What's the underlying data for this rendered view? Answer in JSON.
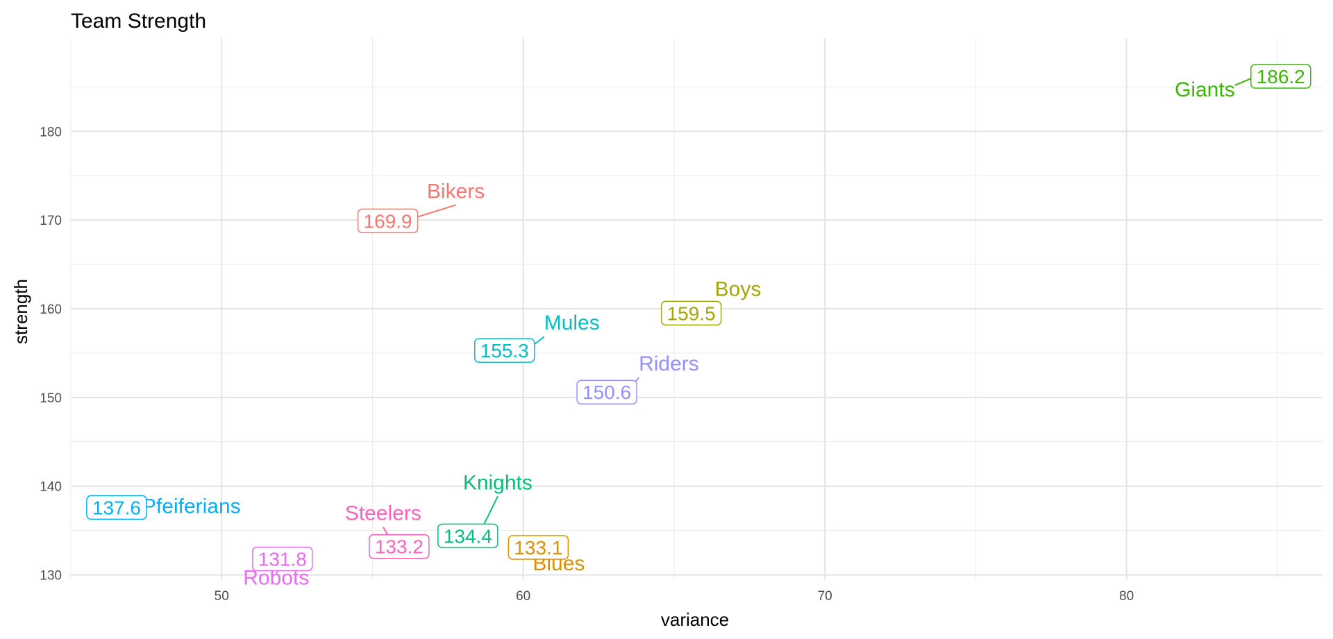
{
  "chart_data": {
    "type": "scatter",
    "title": "Team Strength",
    "xlabel": "variance",
    "ylabel": "strength",
    "xlim": [
      45,
      86.5
    ],
    "ylim": [
      129.5,
      190.5
    ],
    "x_ticks": [
      50,
      60,
      70,
      80
    ],
    "y_ticks": [
      130,
      140,
      150,
      160,
      170,
      180
    ],
    "grid": true,
    "legend": "none",
    "points": [
      {
        "name": "Bikers",
        "x": 56.2,
        "y": 169.9,
        "label": "169.9",
        "color": "#F8766D"
      },
      {
        "name": "Blues",
        "x": 60.2,
        "y": 133.1,
        "label": "133.1",
        "color": "#D89000"
      },
      {
        "name": "Boys",
        "x": 65.5,
        "y": 159.5,
        "label": "159.5",
        "color": "#A3A500"
      },
      {
        "name": "Giants",
        "x": 84.1,
        "y": 186.2,
        "label": "186.2",
        "color": "#39B600"
      },
      {
        "name": "Knights",
        "x": 58.6,
        "y": 134.4,
        "label": "134.4",
        "color": "#00BF7D"
      },
      {
        "name": "Mules",
        "x": 60.3,
        "y": 155.3,
        "label": "155.3",
        "color": "#00BFC4"
      },
      {
        "name": "Pfeiferians",
        "x": 47.3,
        "y": 137.6,
        "label": "137.6",
        "color": "#00B0F6"
      },
      {
        "name": "Riders",
        "x": 63.6,
        "y": 150.6,
        "label": "150.6",
        "color": "#9590FF"
      },
      {
        "name": "Robots",
        "x": 52.2,
        "y": 131.8,
        "label": "131.8",
        "color": "#E76BF3"
      },
      {
        "name": "Steelers",
        "x": 55.7,
        "y": 133.2,
        "label": "133.2",
        "color": "#FF62BC"
      }
    ]
  }
}
